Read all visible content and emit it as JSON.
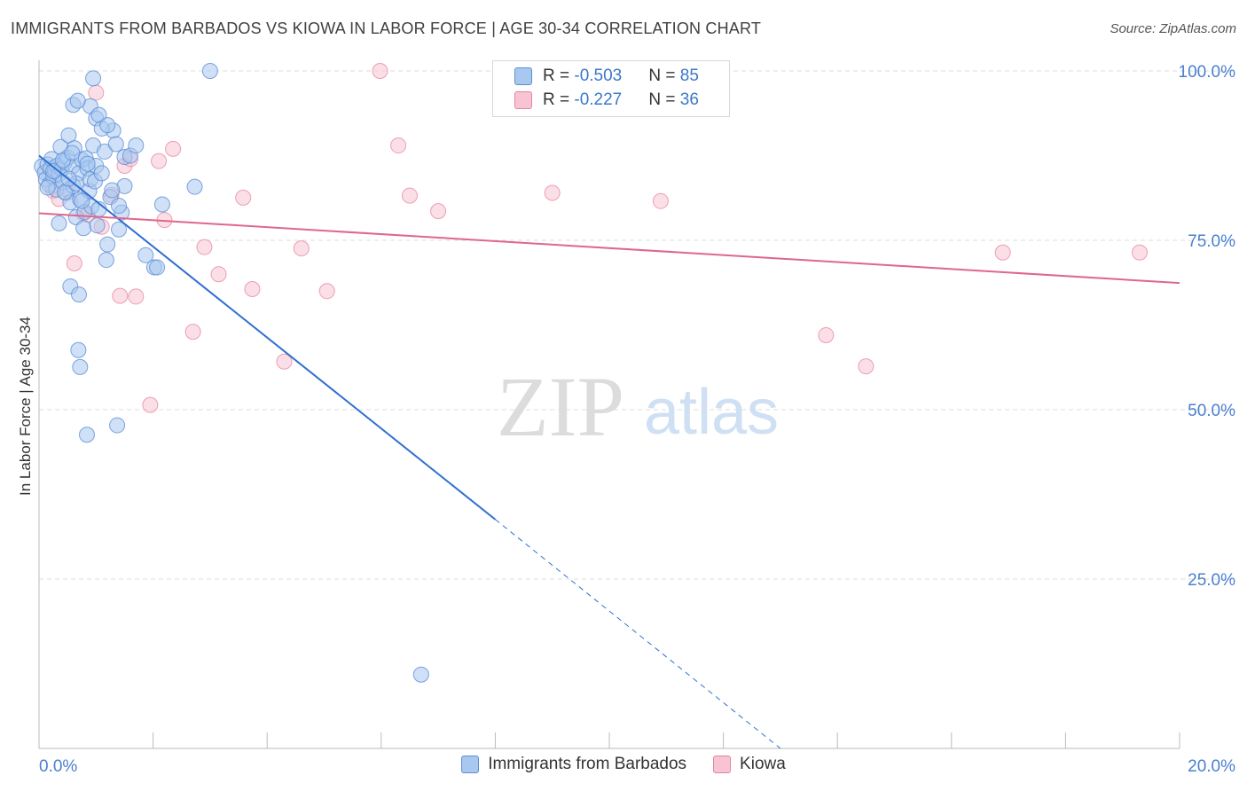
{
  "title": "IMMIGRANTS FROM BARBADOS VS KIOWA IN LABOR FORCE | AGE 30-34 CORRELATION CHART",
  "source": "Source: ZipAtlas.com",
  "watermark": {
    "zip": "ZIP",
    "atlas": "atlas"
  },
  "legend": {
    "series1": {
      "r_label": "R = ",
      "r_value": "-0.503",
      "n_label": "N = ",
      "n_value": "85"
    },
    "series2": {
      "r_label": "R = ",
      "r_value": "-0.227",
      "n_label": "N = ",
      "n_value": "36"
    }
  },
  "colors": {
    "blue_fill": "#a9c8f0",
    "blue_stroke": "#5b8fd6",
    "blue_line": "#2f6fd1",
    "pink_fill": "#f8c4d3",
    "pink_stroke": "#e8819f",
    "pink_line": "#e0668d",
    "tick_label": "#4a7fd0",
    "grid": "#dddddd"
  },
  "chart_data": {
    "type": "scatter",
    "title": "IMMIGRANTS FROM BARBADOS VS KIOWA IN LABOR FORCE | AGE 30-34 CORRELATION CHART",
    "xlabel": "",
    "ylabel": "In Labor Force | Age 30-34",
    "xlim": [
      0,
      20
    ],
    "ylim": [
      0,
      100
    ],
    "x_tick_labels": [
      "0.0%",
      "20.0%"
    ],
    "y_ticks": [
      25,
      50,
      75,
      100
    ],
    "y_tick_labels": [
      "25.0%",
      "50.0%",
      "75.0%",
      "100.0%"
    ],
    "grid": true,
    "legend_position": "bottom-center",
    "series": [
      {
        "name": "Immigrants from Barbados",
        "color": "#a9c8f0",
        "r": -0.503,
        "n": 85,
        "trend": {
          "x0": 0,
          "y0": 87.5,
          "x_solid_end": 8.0,
          "y_solid_end": 33.8,
          "x1": 13.0,
          "y1": 0
        },
        "points": [
          [
            0.05,
            85.9
          ],
          [
            0.1,
            85.0
          ],
          [
            0.12,
            84.0
          ],
          [
            0.15,
            86.2
          ],
          [
            0.18,
            83.2
          ],
          [
            0.2,
            85.6
          ],
          [
            0.22,
            87.0
          ],
          [
            0.25,
            84.4
          ],
          [
            0.28,
            85.3
          ],
          [
            0.3,
            82.5
          ],
          [
            0.32,
            86.0
          ],
          [
            0.35,
            84.8
          ],
          [
            0.38,
            88.8
          ],
          [
            0.4,
            85.5
          ],
          [
            0.42,
            83.6
          ],
          [
            0.45,
            86.5
          ],
          [
            0.48,
            82.0
          ],
          [
            0.5,
            87.2
          ],
          [
            0.52,
            90.5
          ],
          [
            0.55,
            80.6
          ],
          [
            0.58,
            85.9
          ],
          [
            0.6,
            83.0
          ],
          [
            0.62,
            88.6
          ],
          [
            0.65,
            78.4
          ],
          [
            0.7,
            84.9
          ],
          [
            0.72,
            81.0
          ],
          [
            0.75,
            86.9
          ],
          [
            0.78,
            76.8
          ],
          [
            0.8,
            79.2
          ],
          [
            0.82,
            87.1
          ],
          [
            0.85,
            85.6
          ],
          [
            0.88,
            82.3
          ],
          [
            0.9,
            84.0
          ],
          [
            0.92,
            80.0
          ],
          [
            0.95,
            89.0
          ],
          [
            0.98,
            83.7
          ],
          [
            1.0,
            86.0
          ],
          [
            1.05,
            79.6
          ],
          [
            1.1,
            84.9
          ],
          [
            1.15,
            88.1
          ],
          [
            1.18,
            72.1
          ],
          [
            1.2,
            74.4
          ],
          [
            1.25,
            81.4
          ],
          [
            1.3,
            91.2
          ],
          [
            1.35,
            89.2
          ],
          [
            1.4,
            76.6
          ],
          [
            1.45,
            79.1
          ],
          [
            1.5,
            87.3
          ],
          [
            1.6,
            87.5
          ],
          [
            1.7,
            89.0
          ],
          [
            0.35,
            77.5
          ],
          [
            0.55,
            68.2
          ],
          [
            0.7,
            67.0
          ],
          [
            0.9,
            94.8
          ],
          [
            1.0,
            93.0
          ],
          [
            1.05,
            93.5
          ],
          [
            1.1,
            91.5
          ],
          [
            1.2,
            92.0
          ],
          [
            1.4,
            80.1
          ],
          [
            0.6,
            95.0
          ],
          [
            0.68,
            95.6
          ],
          [
            0.95,
            98.9
          ],
          [
            1.5,
            83.0
          ],
          [
            1.87,
            72.8
          ],
          [
            2.02,
            71.0
          ],
          [
            2.07,
            71.0
          ],
          [
            2.16,
            80.3
          ],
          [
            2.73,
            82.9
          ],
          [
            3.0,
            100.0
          ],
          [
            0.69,
            58.8
          ],
          [
            0.72,
            56.3
          ],
          [
            0.84,
            46.3
          ],
          [
            1.37,
            47.7
          ],
          [
            6.7,
            10.9
          ],
          [
            0.15,
            82.8
          ],
          [
            0.25,
            85.2
          ],
          [
            0.45,
            82.1
          ],
          [
            0.65,
            83.4
          ],
          [
            0.75,
            80.8
          ],
          [
            1.02,
            77.2
          ],
          [
            1.28,
            82.4
          ],
          [
            0.42,
            86.8
          ],
          [
            0.52,
            84.1
          ],
          [
            0.85,
            86.3
          ],
          [
            0.58,
            87.9
          ]
        ]
      },
      {
        "name": "Kiowa",
        "color": "#f8c4d3",
        "r": -0.227,
        "n": 36,
        "trend": {
          "x0": 0,
          "y0": 79.0,
          "x1": 20,
          "y1": 68.7
        },
        "points": [
          [
            0.2,
            84.5
          ],
          [
            0.25,
            82.3
          ],
          [
            0.35,
            81.1
          ],
          [
            0.5,
            82.5
          ],
          [
            0.62,
            71.6
          ],
          [
            0.78,
            79.0
          ],
          [
            0.85,
            78.8
          ],
          [
            1.0,
            96.8
          ],
          [
            1.1,
            77.0
          ],
          [
            1.27,
            81.7
          ],
          [
            1.42,
            66.8
          ],
          [
            1.5,
            86.0
          ],
          [
            1.6,
            87.0
          ],
          [
            1.7,
            66.7
          ],
          [
            1.95,
            50.7
          ],
          [
            2.1,
            86.7
          ],
          [
            2.2,
            78.0
          ],
          [
            2.35,
            88.5
          ],
          [
            2.7,
            61.5
          ],
          [
            2.9,
            74.0
          ],
          [
            3.15,
            70.0
          ],
          [
            3.58,
            81.3
          ],
          [
            3.74,
            67.8
          ],
          [
            4.3,
            57.1
          ],
          [
            4.6,
            73.8
          ],
          [
            5.05,
            67.5
          ],
          [
            5.98,
            100.0
          ],
          [
            6.3,
            89.0
          ],
          [
            6.5,
            81.6
          ],
          [
            7.0,
            79.3
          ],
          [
            9.0,
            82.0
          ],
          [
            10.9,
            80.8
          ],
          [
            13.8,
            61.0
          ],
          [
            14.5,
            56.4
          ],
          [
            16.9,
            73.2
          ],
          [
            19.3,
            73.2
          ]
        ]
      }
    ]
  }
}
